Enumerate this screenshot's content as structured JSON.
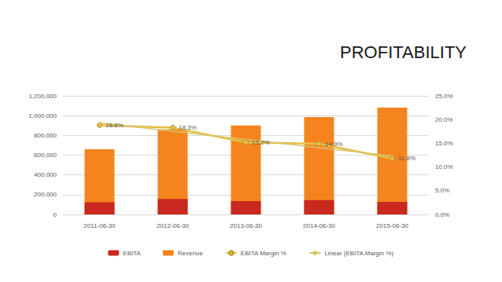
{
  "chart_data": {
    "type": "bar",
    "title": "PROFITABILITY",
    "categories": [
      "2011-06-30",
      "2012-06-30",
      "2013-06-30",
      "2014-06-30",
      "2015-06-30"
    ],
    "series": [
      {
        "name": "EBITA",
        "type": "bar",
        "color": "#c8281e",
        "values": [
          124000,
          157000,
          136000,
          146000,
          127000
        ]
      },
      {
        "name": "Revenue",
        "type": "bar",
        "color": "#f5841f",
        "values": [
          660000,
          860000,
          900000,
          985000,
          1080000
        ]
      },
      {
        "name": "EBITA Margin %",
        "type": "line",
        "axis": "y2",
        "color": "#e3c04a",
        "marker": "circle",
        "line_style": "solid",
        "data_labels": true,
        "values": [
          18.8,
          18.3,
          15.2,
          14.9,
          11.8
        ],
        "value_labels": [
          "18.8%",
          "18.3%",
          "15.2%",
          "14.9%",
          "11.8%"
        ]
      },
      {
        "name": "Linear (EBITA Margin %)",
        "type": "line",
        "axis": "y2",
        "color": "#d8c46a",
        "marker": "none",
        "line_style": "solid",
        "values": [
          19.28,
          17.54,
          15.8,
          14.06,
          12.32
        ]
      }
    ],
    "ylim": [
      0,
      1200000
    ],
    "yticks": [
      0,
      {
        "value": 200000,
        "label": "200,000"
      },
      {
        "value": 400000,
        "label": "400,000"
      },
      {
        "value": 600000,
        "label": "600,000"
      },
      {
        "value": 800000,
        "label": "800,000"
      },
      {
        "value": 1000000,
        "label": "1,000,000"
      },
      {
        "value": 1200000,
        "label": "1,200,000"
      }
    ],
    "y2lim": [
      0,
      25
    ],
    "y2ticks": [
      {
        "value": 0,
        "label": "0.0%"
      },
      {
        "value": 5,
        "label": "5.0%"
      },
      {
        "value": 10,
        "label": "10.0%"
      },
      {
        "value": 15,
        "label": "15.0%"
      },
      {
        "value": 20,
        "label": "20.0%"
      },
      {
        "value": 25,
        "label": "25.0%"
      }
    ],
    "grid": true,
    "legend": "bottom"
  }
}
